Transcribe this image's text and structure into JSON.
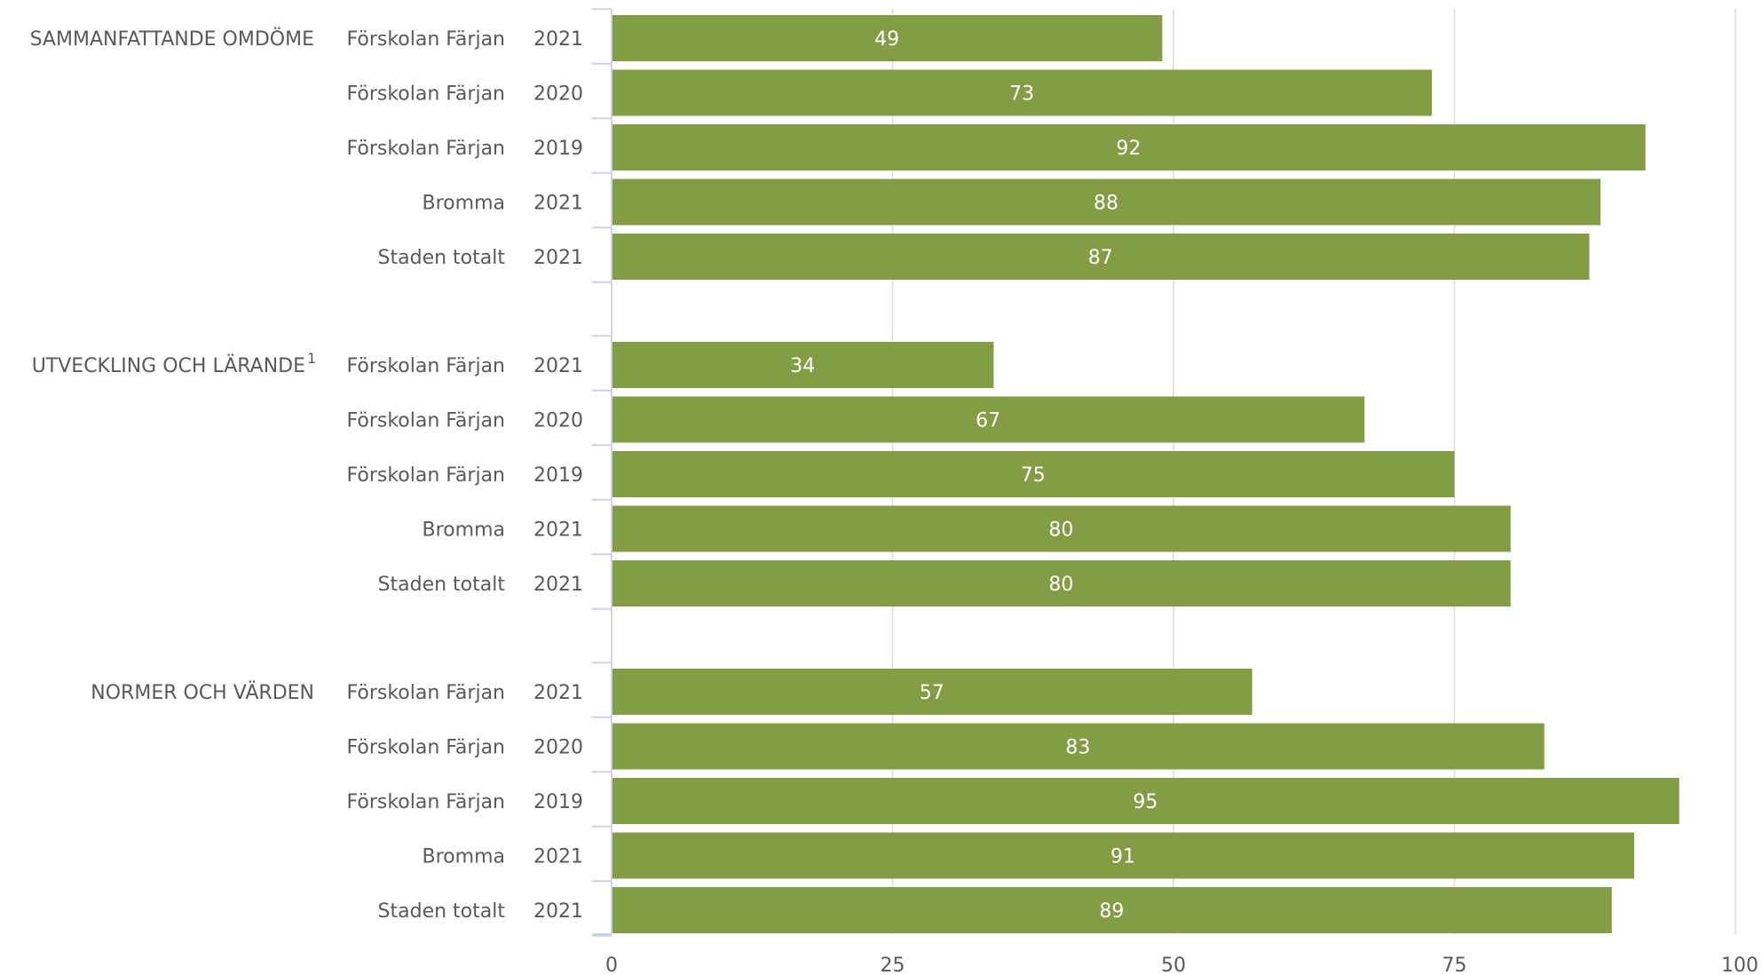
{
  "chart_data": {
    "type": "bar",
    "orientation": "horizontal",
    "bar_color": "#829d43",
    "grid": true,
    "xlim": [
      0,
      100
    ],
    "x_ticks": [
      "0",
      "25",
      "50",
      "75",
      "100"
    ],
    "groups": [
      {
        "label": "SAMMANFATTANDE OMDÖME",
        "superscript": "",
        "rows": [
          {
            "category": "Förskolan Färjan",
            "year": "2021",
            "value": 49
          },
          {
            "category": "Förskolan Färjan",
            "year": "2020",
            "value": 73
          },
          {
            "category": "Förskolan Färjan",
            "year": "2019",
            "value": 92
          },
          {
            "category": "Bromma",
            "year": "2021",
            "value": 88
          },
          {
            "category": "Staden totalt",
            "year": "2021",
            "value": 87
          }
        ]
      },
      {
        "label": "UTVECKLING OCH LÄRANDE",
        "superscript": "1",
        "rows": [
          {
            "category": "Förskolan Färjan",
            "year": "2021",
            "value": 34
          },
          {
            "category": "Förskolan Färjan",
            "year": "2020",
            "value": 67
          },
          {
            "category": "Förskolan Färjan",
            "year": "2019",
            "value": 75
          },
          {
            "category": "Bromma",
            "year": "2021",
            "value": 80
          },
          {
            "category": "Staden totalt",
            "year": "2021",
            "value": 80
          }
        ]
      },
      {
        "label": "NORMER OCH VÄRDEN",
        "superscript": "",
        "rows": [
          {
            "category": "Förskolan Färjan",
            "year": "2021",
            "value": 57
          },
          {
            "category": "Förskolan Färjan",
            "year": "2020",
            "value": 83
          },
          {
            "category": "Förskolan Färjan",
            "year": "2019",
            "value": 95
          },
          {
            "category": "Bromma",
            "year": "2021",
            "value": 91
          },
          {
            "category": "Staden totalt",
            "year": "2021",
            "value": 89
          }
        ]
      }
    ]
  }
}
